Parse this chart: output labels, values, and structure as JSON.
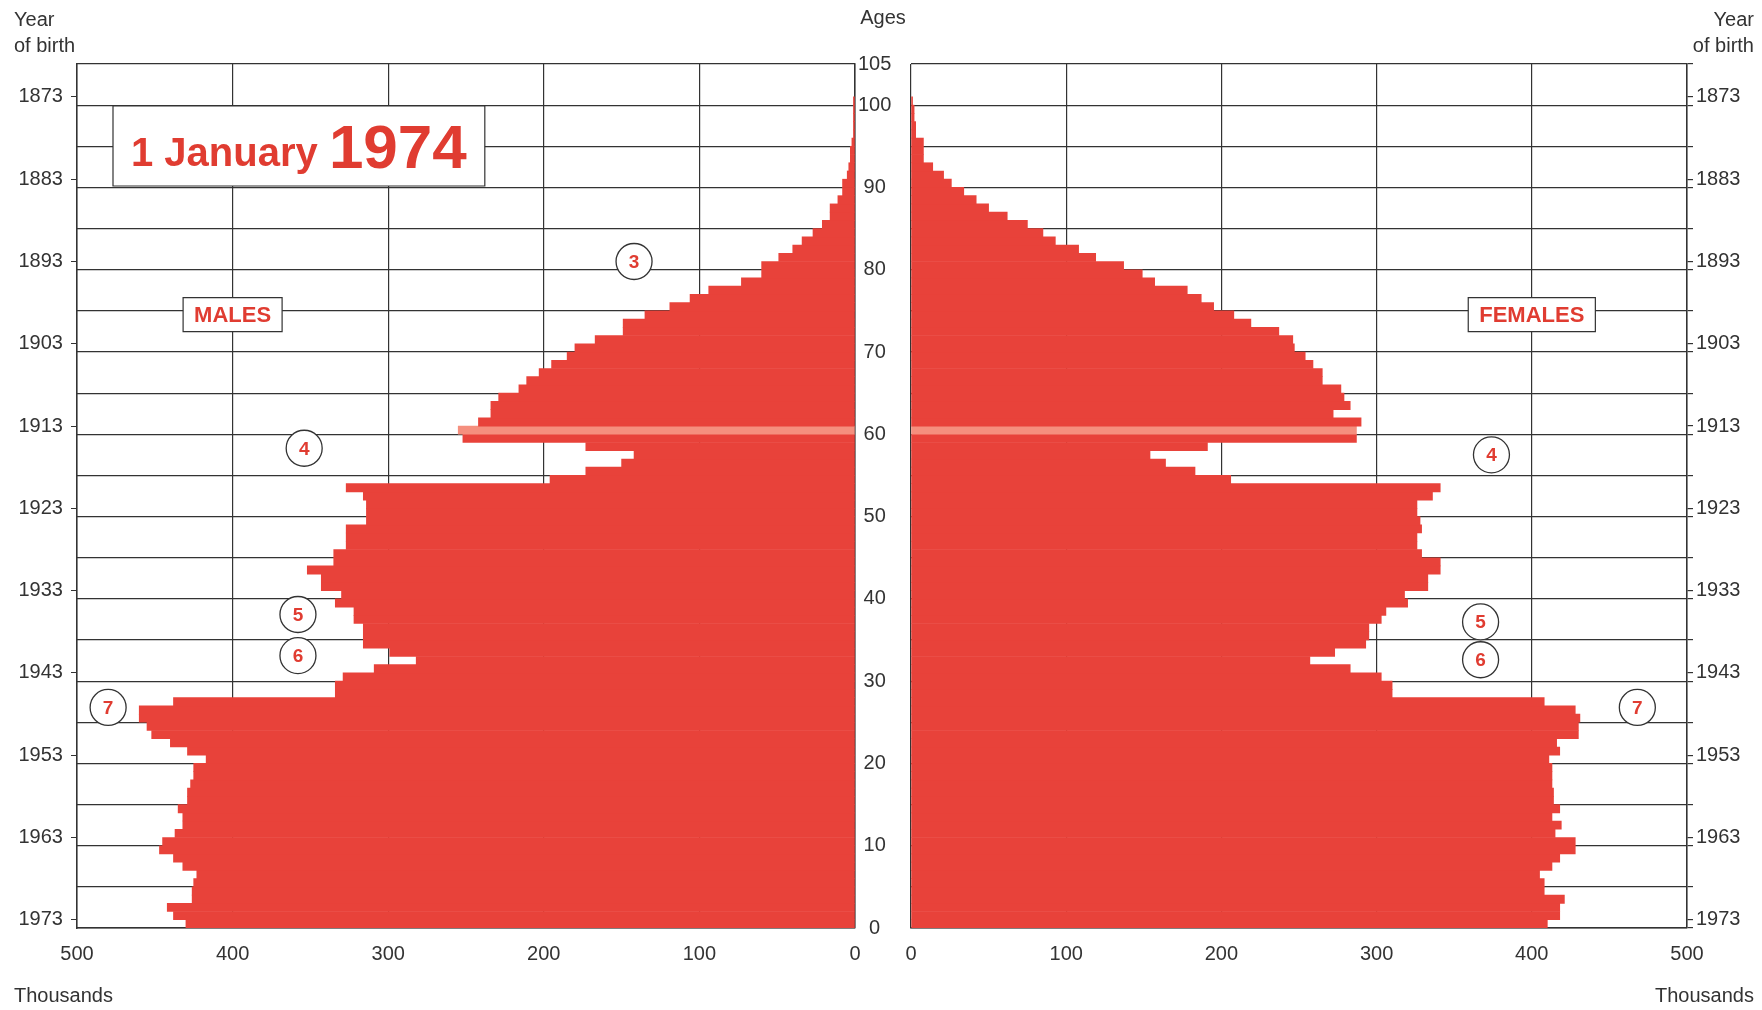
{
  "chart_data": [
    {
      "type": "bar",
      "orientation": "horizontal",
      "title": "1 January 1974",
      "xlabel": "Thousands",
      "ylabel": "Ages",
      "y2label": "Year of birth",
      "x": [
        0.5,
        1.5,
        2.5,
        3.5,
        4.5,
        5.5,
        6.5,
        7.5,
        8.5,
        9.5,
        10.5,
        11.5,
        12.5,
        13.5,
        14.5,
        15.5,
        16.5,
        17.5,
        18.5,
        19.5,
        20.5,
        21.5,
        22.5,
        23.5,
        24.5,
        25.5,
        26.5,
        27.5,
        28.5,
        29.5,
        30.5,
        31.5,
        32.5,
        33.5,
        34.5,
        35.5,
        36.5,
        37.5,
        38.5,
        39.5,
        40.5,
        41.5,
        42.5,
        43.5,
        44.5,
        45.5,
        46.5,
        47.5,
        48.5,
        49.5,
        50.5,
        51.5,
        52.5,
        53.5,
        54.5,
        55.5,
        56.5,
        57.5,
        58.5,
        59.5,
        60.5,
        61.5,
        62.5,
        63.5,
        64.5,
        65.5,
        66.5,
        67.5,
        68.5,
        69.5,
        70.5,
        71.5,
        72.5,
        73.5,
        74.5,
        75.5,
        76.5,
        77.5,
        78.5,
        79.5,
        80.5,
        81.5,
        82.5,
        83.5,
        84.5,
        85.5,
        86.5,
        87.5,
        88.5,
        89.5,
        90.5,
        91.5,
        92.5,
        93.5,
        94.5,
        95.5,
        96.5,
        97.5,
        98.5,
        99.5,
        100.5
      ],
      "series": [
        {
          "name": "MALES",
          "colors": [
            "#e8423a",
            "#e8423a",
            "#e8423a",
            "#e8423a",
            "#e8423a",
            "#e8423a",
            "#e8423a",
            "#e8423a",
            "#e8423a",
            "#e8423a",
            "#e8423a",
            "#e8423a",
            "#e8423a",
            "#e8423a",
            "#e8423a",
            "#e8423a",
            "#e8423a",
            "#e8423a",
            "#e8423a",
            "#e8423a",
            "#e8423a",
            "#e8423a",
            "#e8423a",
            "#e8423a",
            "#e8423a",
            "#e8423a",
            "#e8423a",
            "#e8423a",
            "#e8423a",
            "#e8423a",
            "#e8423a",
            "#e8423a",
            "#e8423a",
            "#e8423a",
            "#e8423a",
            "#e8423a",
            "#e8423a",
            "#e8423a",
            "#e8423a",
            "#e8423a",
            "#e8423a",
            "#e8423a",
            "#e8423a",
            "#e8423a",
            "#e8423a",
            "#e8423a",
            "#e8423a",
            "#e8423a",
            "#e8423a",
            "#e8423a",
            "#e8423a",
            "#e8423a",
            "#e8423a",
            "#e8423a",
            "#e8423a",
            "#e8423a",
            "#e8423a",
            "#e8423a",
            "#e8423a",
            "#e8423a",
            "#f58f7e",
            "#e8423a",
            "#e8423a",
            "#e8423a",
            "#e8423a",
            "#e8423a",
            "#e8423a",
            "#e8423a",
            "#e8423a",
            "#e8423a",
            "#e8423a",
            "#e8423a",
            "#e8423a",
            "#e8423a",
            "#e8423a",
            "#e8423a",
            "#e8423a",
            "#e8423a",
            "#e8423a",
            "#e8423a",
            "#e8423a",
            "#e8423a",
            "#e8423a",
            "#e8423a",
            "#e8423a",
            "#e8423a",
            "#e8423a",
            "#e8423a",
            "#e8423a",
            "#e8423a",
            "#e8423a",
            "#e8423a",
            "#e8423a",
            "#e8423a",
            "#e8423a",
            "#e8423a",
            "#e8423a",
            "#e8423a",
            "#e8423a",
            "#e8423a",
            "#e8423a"
          ],
          "values": [
            430,
            438,
            442,
            426,
            426,
            425,
            423,
            432,
            438,
            447,
            445,
            437,
            432,
            432,
            435,
            429,
            429,
            427,
            425,
            425,
            417,
            429,
            440,
            452,
            455,
            460,
            460,
            438,
            334,
            334,
            329,
            309,
            282,
            299,
            316,
            316,
            316,
            322,
            322,
            334,
            330,
            343,
            343,
            352,
            335,
            335,
            327,
            327,
            327,
            314,
            314,
            314,
            316,
            327,
            196,
            173,
            150,
            142,
            173,
            252,
            255,
            242,
            234,
            234,
            229,
            216,
            211,
            203,
            195,
            185,
            180,
            167,
            149,
            149,
            135,
            119,
            106,
            94,
            73,
            60,
            60,
            49,
            40,
            34,
            27,
            21,
            16,
            16,
            11,
            8,
            8,
            5,
            4,
            3,
            3,
            2,
            1,
            1,
            1,
            1,
            1
          ]
        }
      ],
      "xlim": [
        500,
        0
      ],
      "xticks": [
        500,
        400,
        300,
        200,
        100,
        0
      ],
      "ylim": [
        0,
        105
      ],
      "yticks": [
        0,
        {
          "value": 5,
          "label": null
        },
        10,
        {
          "value": 15,
          "label": null
        },
        20,
        {
          "value": 25,
          "label": null
        },
        30,
        {
          "value": 35,
          "label": null
        },
        40,
        {
          "value": 45,
          "label": null
        },
        50,
        {
          "value": 55,
          "label": null
        },
        60,
        {
          "value": 65,
          "label": null
        },
        70,
        {
          "value": 75,
          "label": null
        },
        80,
        {
          "value": 85,
          "label": null
        },
        90,
        {
          "value": 95,
          "label": null
        },
        100,
        105
      ],
      "y2lim": [
        1974,
        1869
      ],
      "y2ticks": [
        1973,
        1963,
        1953,
        1943,
        1933,
        1923,
        1913,
        1903,
        1893,
        1883,
        1873
      ],
      "grid": true,
      "annotations": [
        {
          "text": "3",
          "x": 142,
          "y": 81
        },
        {
          "text": "4",
          "x": 354,
          "y": 58.3
        },
        {
          "text": "5",
          "x": 358,
          "y": 38.1
        },
        {
          "text": "6",
          "x": 358,
          "y": 33.1
        },
        {
          "text": "7",
          "x": 480,
          "y": 26.8
        }
      ]
    },
    {
      "type": "bar",
      "orientation": "horizontal",
      "xlabel": "Thousands",
      "ylabel": "Year of birth",
      "x": [
        1973.5,
        1972.5,
        1971.5,
        1970.5,
        1969.5,
        1968.5,
        1967.5,
        1966.5,
        1965.5,
        1964.5,
        1963.5,
        1962.5,
        1961.5,
        1960.5,
        1959.5,
        1958.5,
        1957.5,
        1956.5,
        1955.5,
        1954.5,
        1953.5,
        1952.5,
        1951.5,
        1950.5,
        1949.5,
        1948.5,
        1947.5,
        1946.5,
        1945.5,
        1944.5,
        1943.5,
        1942.5,
        1941.5,
        1940.5,
        1939.5,
        1938.5,
        1937.5,
        1936.5,
        1935.5,
        1934.5,
        1933.5,
        1932.5,
        1931.5,
        1930.5,
        1929.5,
        1928.5,
        1927.5,
        1926.5,
        1925.5,
        1924.5,
        1923.5,
        1922.5,
        1921.5,
        1920.5,
        1919.5,
        1918.5,
        1917.5,
        1916.5,
        1915.5,
        1914.5,
        1913.5,
        1912.5,
        1911.5,
        1910.5,
        1909.5,
        1908.5,
        1907.5,
        1906.5,
        1905.5,
        1904.5,
        1903.5,
        1902.5,
        1901.5,
        1900.5,
        1899.5,
        1898.5,
        1897.5,
        1896.5,
        1895.5,
        1894.5,
        1893.5,
        1892.5,
        1891.5,
        1890.5,
        1889.5,
        1888.5,
        1887.5,
        1886.5,
        1885.5,
        1884.5,
        1883.5,
        1882.5,
        1881.5,
        1880.5,
        1879.5,
        1878.5,
        1877.5,
        1876.5,
        1875.5,
        1874.5,
        1873.5
      ],
      "series": [
        {
          "name": "FEMALES",
          "colors": [
            "#e8423a",
            "#e8423a",
            "#e8423a",
            "#e8423a",
            "#e8423a",
            "#e8423a",
            "#e8423a",
            "#e8423a",
            "#e8423a",
            "#e8423a",
            "#e8423a",
            "#e8423a",
            "#e8423a",
            "#e8423a",
            "#e8423a",
            "#e8423a",
            "#e8423a",
            "#e8423a",
            "#e8423a",
            "#e8423a",
            "#e8423a",
            "#e8423a",
            "#e8423a",
            "#e8423a",
            "#e8423a",
            "#e8423a",
            "#e8423a",
            "#e8423a",
            "#e8423a",
            "#e8423a",
            "#e8423a",
            "#e8423a",
            "#e8423a",
            "#e8423a",
            "#e8423a",
            "#e8423a",
            "#e8423a",
            "#e8423a",
            "#e8423a",
            "#e8423a",
            "#e8423a",
            "#e8423a",
            "#e8423a",
            "#e8423a",
            "#e8423a",
            "#e8423a",
            "#e8423a",
            "#e8423a",
            "#e8423a",
            "#e8423a",
            "#e8423a",
            "#e8423a",
            "#e8423a",
            "#e8423a",
            "#e8423a",
            "#e8423a",
            "#e8423a",
            "#e8423a",
            "#e8423a",
            "#e8423a",
            "#f58f7e",
            "#e8423a",
            "#e8423a",
            "#e8423a",
            "#e8423a",
            "#e8423a",
            "#e8423a",
            "#e8423a",
            "#e8423a",
            "#e8423a",
            "#e8423a",
            "#e8423a",
            "#e8423a",
            "#e8423a",
            "#e8423a",
            "#e8423a",
            "#e8423a",
            "#e8423a",
            "#e8423a",
            "#e8423a",
            "#e8423a",
            "#e8423a",
            "#e8423a",
            "#e8423a",
            "#e8423a",
            "#e8423a",
            "#e8423a",
            "#e8423a",
            "#e8423a",
            "#e8423a",
            "#e8423a",
            "#e8423a",
            "#e8423a",
            "#e8423a",
            "#e8423a",
            "#e8423a",
            "#e8423a",
            "#e8423a",
            "#e8423a",
            "#e8423a",
            "#e8423a"
          ],
          "values": [
            410,
            418,
            418,
            421,
            408,
            408,
            405,
            413,
            418,
            428,
            428,
            415,
            419,
            413,
            418,
            414,
            414,
            413,
            413,
            413,
            411,
            418,
            416,
            430,
            430,
            431,
            428,
            408,
            310,
            310,
            303,
            283,
            257,
            273,
            293,
            295,
            295,
            303,
            306,
            320,
            318,
            333,
            333,
            341,
            341,
            329,
            326,
            326,
            329,
            328,
            326,
            326,
            336,
            341,
            206,
            183,
            164,
            154,
            191,
            287,
            287,
            290,
            272,
            283,
            279,
            277,
            265,
            265,
            259,
            254,
            247,
            246,
            237,
            219,
            208,
            195,
            187,
            178,
            157,
            149,
            137,
            119,
            108,
            93,
            85,
            75,
            62,
            50,
            42,
            34,
            26,
            21,
            14,
            8,
            8,
            8,
            3,
            3,
            2,
            2,
            1
          ]
        }
      ],
      "xlim": [
        0,
        500
      ],
      "xticks": [
        0,
        100,
        200,
        300,
        400,
        500
      ],
      "ylim": [
        1974,
        1869
      ],
      "yticks": [
        {
          "value": 1974,
          "label": null
        },
        1973,
        {
          "value": 1969,
          "label": null
        },
        {
          "value": 1964,
          "label": null
        },
        1963,
        {
          "value": 1959,
          "label": null
        },
        {
          "value": 1954,
          "label": null
        },
        1953,
        {
          "value": 1949,
          "label": null
        },
        {
          "value": 1944,
          "label": null
        },
        1943,
        {
          "value": 1939,
          "label": null
        },
        {
          "value": 1934,
          "label": null
        },
        1933,
        {
          "value": 1929,
          "label": null
        },
        {
          "value": 1924,
          "label": null
        },
        1923,
        {
          "value": 1919,
          "label": null
        },
        {
          "value": 1914,
          "label": null
        },
        1913,
        {
          "value": 1909,
          "label": null
        },
        {
          "value": 1904,
          "label": null
        },
        1903,
        {
          "value": 1899,
          "label": null
        },
        {
          "value": 1894,
          "label": null
        },
        1893,
        {
          "value": 1889,
          "label": null
        },
        {
          "value": 1884,
          "label": null
        },
        1883,
        {
          "value": 1879,
          "label": null
        },
        {
          "value": 1874,
          "label": null
        },
        1873,
        {
          "value": 1869,
          "label": null
        }
      ],
      "grid": true,
      "annotations": [
        {
          "text": "4",
          "x": 374,
          "y": 1916.5
        },
        {
          "text": "5",
          "x": 367,
          "y": 1936.8
        },
        {
          "text": "6",
          "x": 367,
          "y": 1941.4
        },
        {
          "text": "7",
          "x": 468,
          "y": 1947.2
        }
      ]
    }
  ]
}
